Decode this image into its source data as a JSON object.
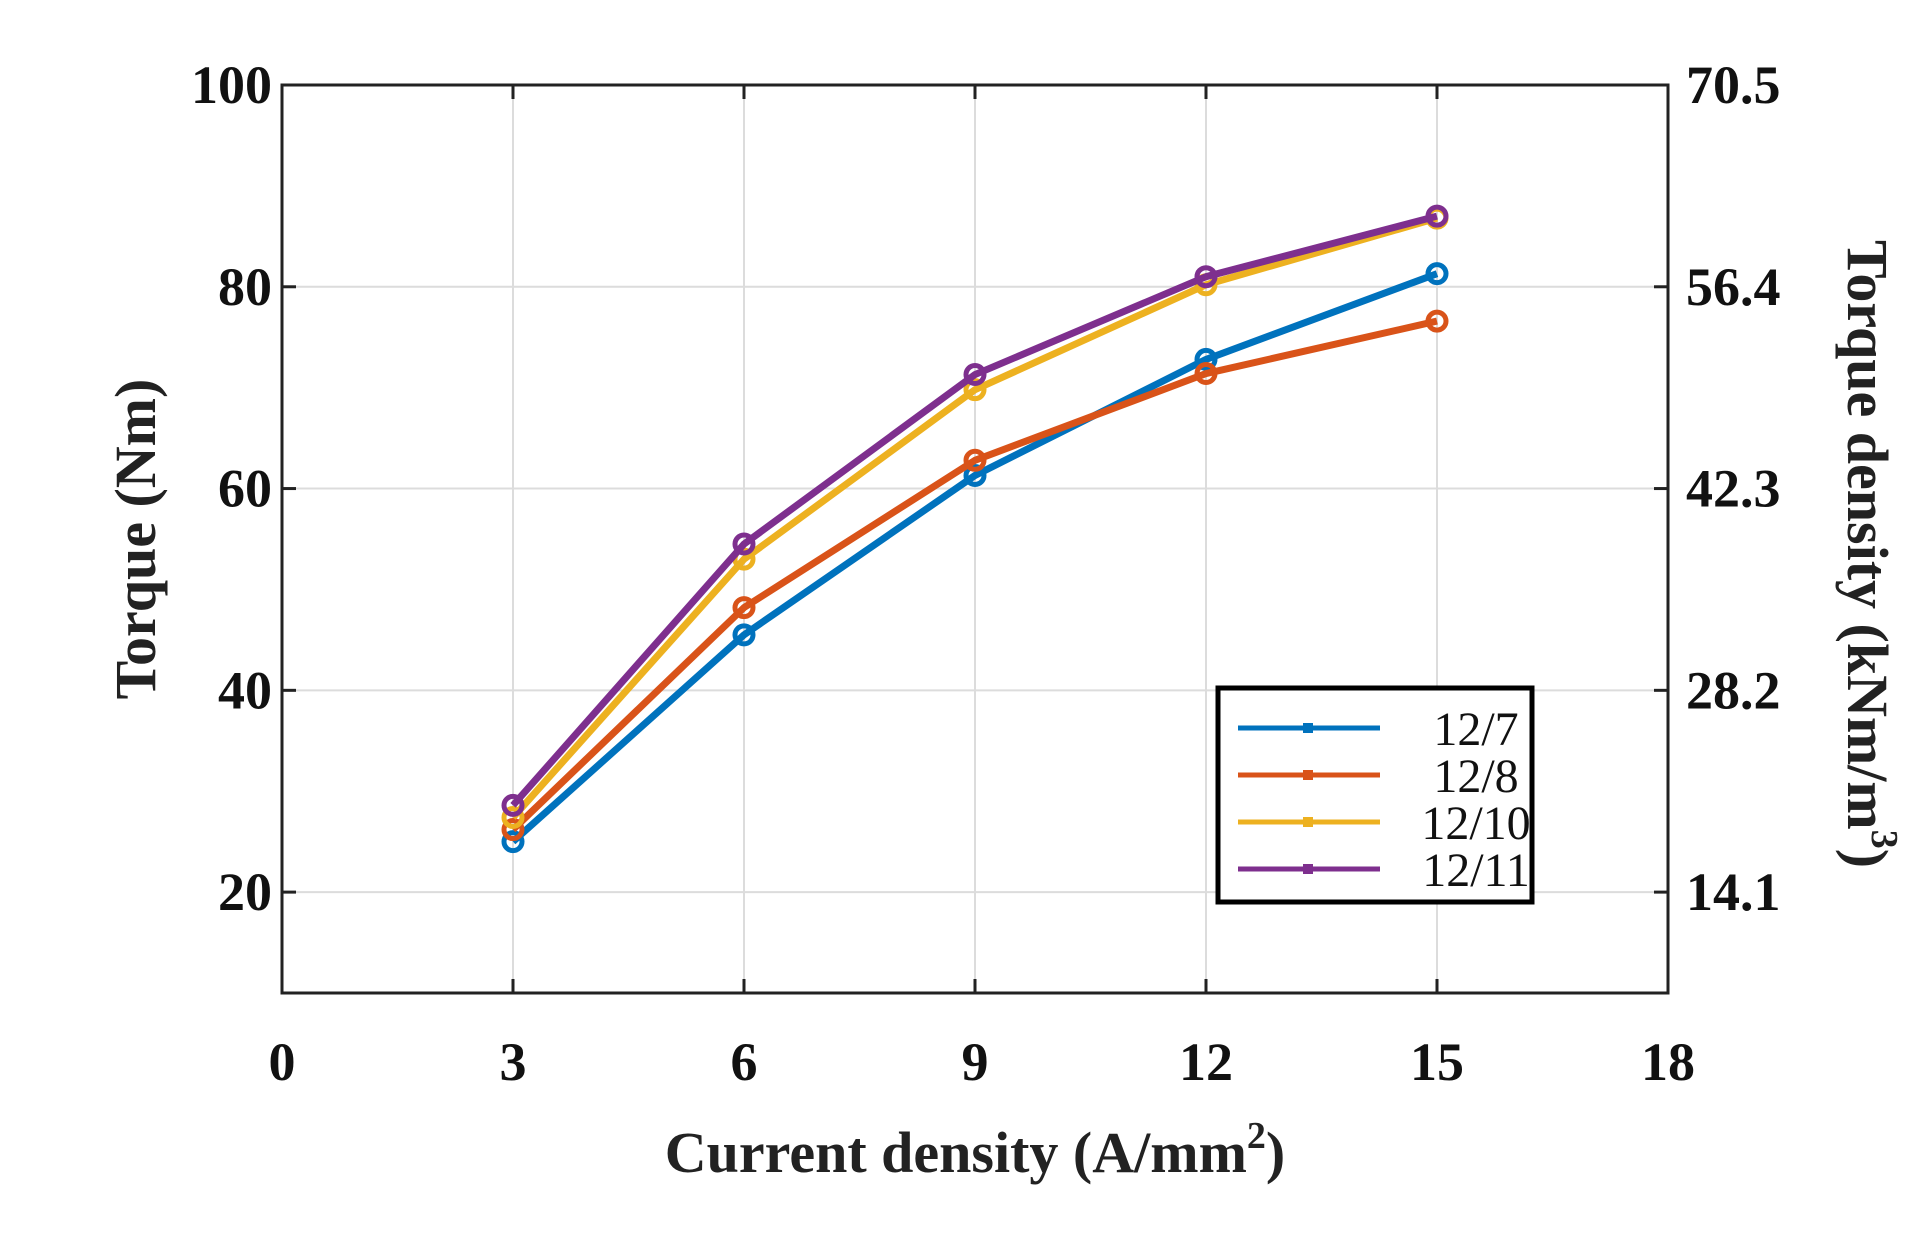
{
  "chart_data": {
    "type": "line",
    "x": [
      3,
      6,
      9,
      12,
      15
    ],
    "series": [
      {
        "name": "12/7",
        "color": "#0072BD",
        "values": [
          25.0,
          45.5,
          61.3,
          72.8,
          81.3
        ]
      },
      {
        "name": "12/8",
        "color": "#D95319",
        "values": [
          26.2,
          48.2,
          62.8,
          71.4,
          76.6
        ]
      },
      {
        "name": "12/10",
        "color": "#EDB120",
        "values": [
          27.4,
          53.0,
          69.8,
          80.2,
          86.8
        ]
      },
      {
        "name": "12/11",
        "color": "#7E2F8E",
        "values": [
          28.6,
          54.5,
          71.3,
          81.0,
          87.0
        ]
      }
    ],
    "xlabel": "Current density (A/mm",
    "xlabel_sup": "2",
    "xlabel_close": ")",
    "ylabel": "Torque (Nm)",
    "y2label": "Torque density (kNm/m",
    "y2label_sup": "3",
    "y2label_close": ")",
    "xlim": [
      0,
      18
    ],
    "ylim": [
      10,
      100
    ],
    "xticks": [
      0,
      3,
      6,
      9,
      12,
      15,
      18
    ],
    "xtick_labels": [
      "0",
      "3",
      "6",
      "9",
      "12",
      "15",
      "18"
    ],
    "yticks": [
      20,
      40,
      60,
      80,
      100
    ],
    "ytick_labels": [
      "20",
      "40",
      "60",
      "80",
      "100"
    ],
    "y2ticks_at": [
      20,
      40,
      60,
      80,
      100
    ],
    "y2tick_labels": [
      "14.1",
      "28.2",
      "42.3",
      "56.4",
      "70.5"
    ],
    "grid": true,
    "legend_position": "bottom-right"
  }
}
